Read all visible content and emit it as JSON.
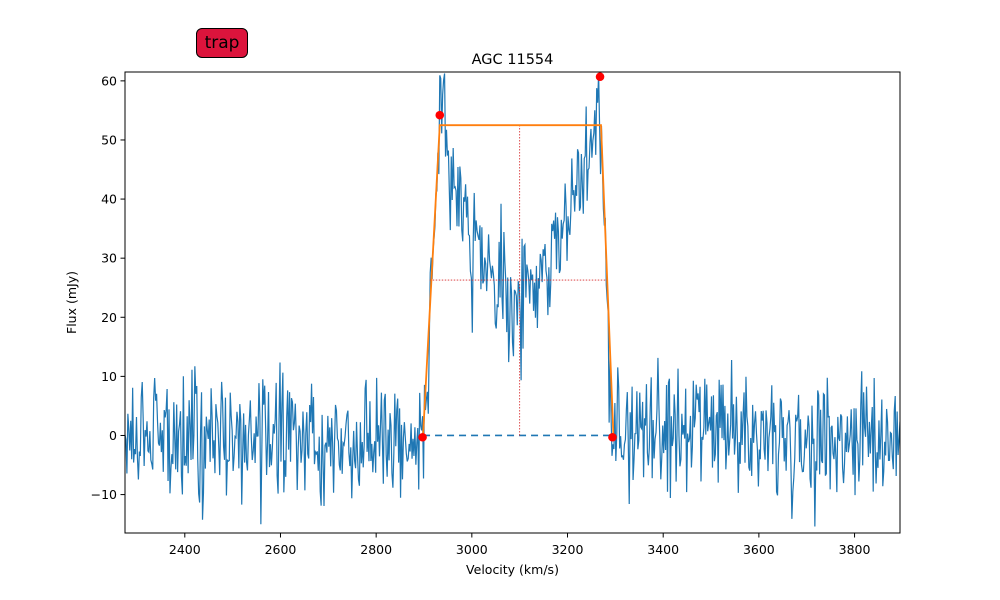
{
  "badge": {
    "label": "trap",
    "color": "#dc143c"
  },
  "chart_data": {
    "type": "line",
    "title": "AGC 11554",
    "xlabel": "Velocity (km/s)",
    "ylabel": "Flux (mJy)",
    "xlim": [
      2275,
      3895
    ],
    "ylim": [
      -16.5,
      61.5
    ],
    "xticks": [
      2400,
      2600,
      2800,
      3000,
      3200,
      3400,
      3600,
      3800
    ],
    "yticks": [
      -10,
      0,
      10,
      20,
      30,
      40,
      50,
      60
    ],
    "grid": false,
    "spectrum": {
      "color": "#1f77b4",
      "profile_x": [
        2275,
        2895,
        2905,
        2915,
        2925,
        2935,
        2945,
        2960,
        2980,
        3000,
        3030,
        3060,
        3090,
        3120,
        3150,
        3180,
        3210,
        3240,
        3255,
        3265,
        3272,
        3280,
        3290,
        3300,
        3895
      ],
      "profile_y": [
        0,
        0,
        6,
        20,
        40,
        52,
        50,
        45,
        38,
        33,
        27,
        24,
        22,
        24,
        28,
        34,
        40,
        48,
        54,
        58,
        50,
        24,
        5,
        0,
        0
      ],
      "noise_rms": 5.0,
      "step": 2
    },
    "trapezoid_fit": {
      "color": "#ff7f0e",
      "x": [
        2898,
        2933,
        3270,
        3296
      ],
      "y": [
        0,
        52.5,
        52.5,
        0
      ]
    },
    "edge_points": {
      "color": "#ff0000",
      "x": [
        2897,
        2933,
        3268,
        3294
      ],
      "y": [
        -0.3,
        54.2,
        60.7,
        -0.3
      ]
    },
    "baseline": {
      "color": "#1f77b4",
      "x": [
        2898,
        3296
      ],
      "y": 0
    },
    "center_line": {
      "color": "#d62728",
      "x": 3100,
      "y": [
        0,
        52.5
      ]
    },
    "half_width_line": {
      "color": "#d62728",
      "x": [
        2912,
        3283
      ],
      "y": 26.3
    }
  }
}
